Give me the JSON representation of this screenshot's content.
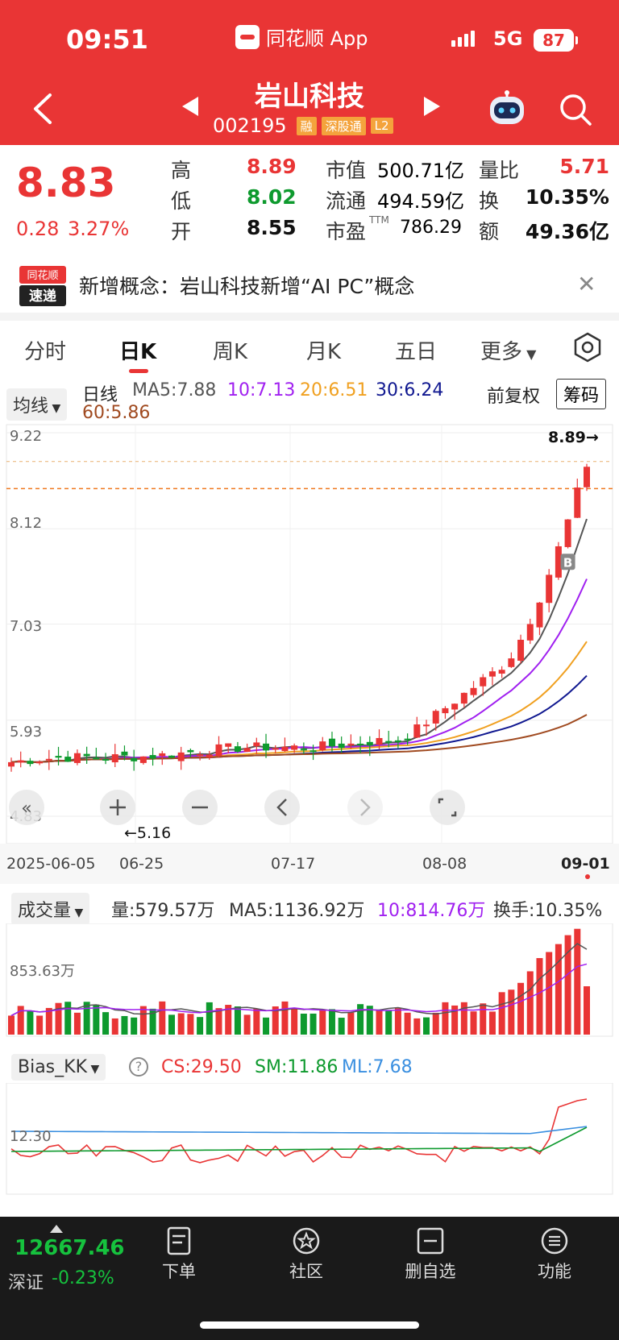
{
  "status": {
    "time": "09:51",
    "app": "同花顺 App",
    "network": "5G",
    "battery": "87"
  },
  "header": {
    "name": "岩山科技",
    "code": "002195",
    "tags": [
      "融",
      "深股通",
      "L2"
    ]
  },
  "quote": {
    "price": "8.83",
    "change": "0.28",
    "change_pct": "3.27%",
    "rows": [
      {
        "l1": "高",
        "v1": "8.89",
        "c1": "#E93535",
        "l2": "市值",
        "v2": "500.71亿",
        "l3": "量比",
        "v3": "5.71",
        "c3": "#E93535"
      },
      {
        "l1": "低",
        "v1": "8.02",
        "c1": "#0E9A2E",
        "l2": "流通",
        "v2": "494.59亿",
        "l3": "换",
        "v3": "10.35%",
        "c3": "#111111"
      },
      {
        "l1": "开",
        "v1": "8.55",
        "c1": "#111111",
        "l2": "市盈",
        "sup": "TTM",
        "v2": "786.29",
        "l3": "额",
        "v3": "49.36亿",
        "c3": "#111111"
      }
    ]
  },
  "news": {
    "logo_top": "同花顺",
    "logo_bottom": "速递",
    "text": "新增概念：岩山科技新增“AI PC”概念"
  },
  "tabs": [
    "分时",
    "日K",
    "周K",
    "月K",
    "五日",
    "更多"
  ],
  "ma": {
    "selector": "均线",
    "label": "日线",
    "ma5": "MA5:7.88",
    "ma10": "10:7.13",
    "ma20": "20:6.51",
    "ma30": "30:6.24",
    "ma60": "60:5.86",
    "adjust": "前复权",
    "chips": "筹码",
    "colors": {
      "ma5": "#555555",
      "ma10": "#A020F0",
      "ma20": "#F0A020",
      "ma30": "#101890",
      "ma60": "#A04A20"
    }
  },
  "kchart": {
    "price_ticks": [
      "9.22",
      "8.12",
      "7.03",
      "5.93",
      "4.83"
    ],
    "high_label": "8.89→",
    "low_label": "←5.16",
    "dates": [
      "2025-06-05",
      "06-25",
      "07-17",
      "08-08",
      "09-01"
    ],
    "buy_marker": "B"
  },
  "volume": {
    "selector": "成交量",
    "vol": "量:579.57万",
    "ma5": "MA5:1136.92万",
    "ma10": "10:814.76万",
    "turnover": "换手:10.35%",
    "tick": "853.63万"
  },
  "bias": {
    "selector": "Bias_KK",
    "help": "?",
    "cs": "CS:29.50",
    "sm": "SM:11.86",
    "ml": "ML:7.68",
    "tick": "12.30"
  },
  "bottom": {
    "index_value": "12667.46",
    "index_name": "深证",
    "index_change": "-0.23%",
    "items": [
      "下单",
      "社区",
      "删自选",
      "功能"
    ]
  }
}
